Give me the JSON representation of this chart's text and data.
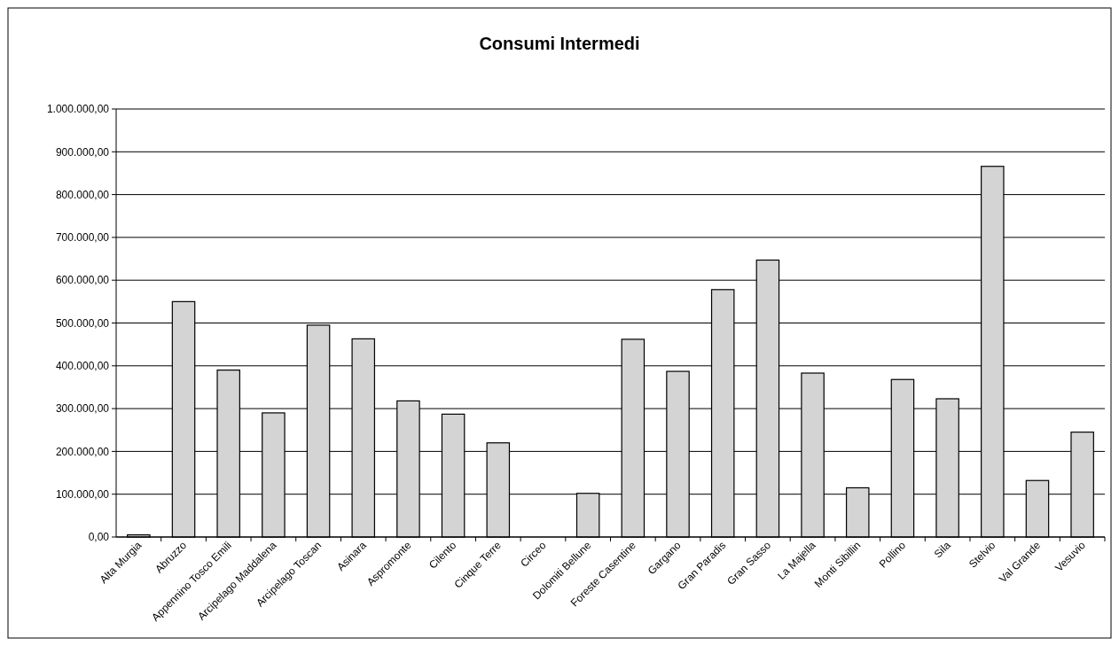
{
  "chart_data": {
    "type": "bar",
    "title": "Consumi Intermedi",
    "categories": [
      "Alta Murgia",
      "Abruzzo",
      "Appennino Tosco Emili",
      "Arcipelago Maddalena",
      "Arcipelago Toscan",
      "Asinara",
      "Aspromonte",
      "Cilento",
      "Cinque Terre",
      "Circeo",
      "Dolomiti Bellune",
      "Foreste Casentine",
      "Gargano",
      "Gran Paradis",
      "Gran Sasso",
      "La Majella",
      "Monti Sibillin",
      "Pollino",
      "Sila",
      "Stelvio",
      "Val Grande",
      "Vesuvio"
    ],
    "values": [
      5000,
      550000,
      390000,
      290000,
      495000,
      463000,
      318000,
      287000,
      220000,
      0,
      102000,
      462000,
      387000,
      578000,
      647000,
      383000,
      115000,
      368000,
      323000,
      866000,
      132000,
      245000
    ],
    "color": "#d4d4d4",
    "ylim": [
      0,
      1000000
    ],
    "yticks": [
      {
        "value": 0,
        "label": "0,00"
      },
      {
        "value": 100000,
        "label": "100.000,00"
      },
      {
        "value": 200000,
        "label": "200.000,00"
      },
      {
        "value": 300000,
        "label": "300.000,00"
      },
      {
        "value": 400000,
        "label": "400.000,00"
      },
      {
        "value": 500000,
        "label": "500.000,00"
      },
      {
        "value": 600000,
        "label": "600.000,00"
      },
      {
        "value": 700000,
        "label": "700.000,00"
      },
      {
        "value": 800000,
        "label": "800.000,00"
      },
      {
        "value": 900000,
        "label": "900.000,00"
      },
      {
        "value": 1000000,
        "label": "1.000.000,00"
      }
    ],
    "grid": "y"
  }
}
